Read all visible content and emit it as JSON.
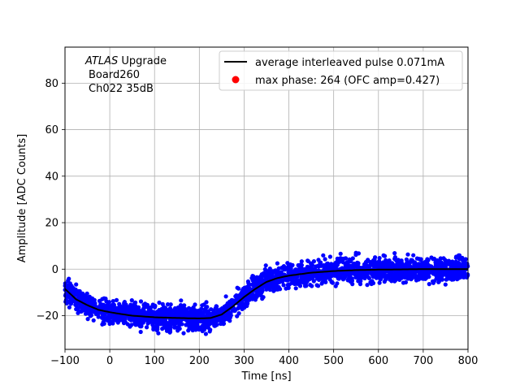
{
  "chart_data": {
    "type": "scatter",
    "xlabel": "Time [ns]",
    "ylabel": "Amplitude [ADC Counts]",
    "xlim": [
      -100,
      800
    ],
    "ylim": [
      -34.5,
      95.5
    ],
    "xticks": [
      "−100",
      "0",
      "100",
      "200",
      "300",
      "400",
      "500",
      "600",
      "700",
      "800"
    ],
    "xtick_values": [
      -100,
      0,
      100,
      200,
      300,
      400,
      500,
      600,
      700,
      800
    ],
    "yticks": [
      "−20",
      "0",
      "20",
      "40",
      "60",
      "80"
    ],
    "ytick_values": [
      -20,
      0,
      20,
      40,
      60,
      80
    ],
    "grid": true,
    "legend_position": "top-right",
    "annotation": {
      "italic": "ATLAS",
      "rest": " Upgrade",
      "line2": "Board260",
      "line3": "Ch022 35dB"
    },
    "series": [
      {
        "name": "average interleaved pulse 0.071mA",
        "type": "line",
        "color": "#000000",
        "x": [
          -100,
          -75,
          -50,
          -25,
          0,
          25,
          50,
          100,
          150,
          200,
          225,
          250,
          275,
          300,
          325,
          350,
          375,
          400,
          450,
          500,
          550,
          600,
          700,
          800
        ],
        "y": [
          -8.5,
          -13,
          -15.5,
          -17.5,
          -18.5,
          -19.3,
          -20,
          -20.7,
          -21,
          -21.2,
          -21,
          -19.5,
          -16,
          -12,
          -8.5,
          -5.5,
          -3.8,
          -2.8,
          -1.5,
          -0.8,
          -0.4,
          -0.2,
          0,
          0
        ]
      },
      {
        "name": "max phase: 264 (OFC amp=0.427)",
        "type": "marker",
        "color": "#ff0000",
        "x": [],
        "y": []
      }
    ],
    "scatter_cloud": {
      "color": "#0000ff",
      "spread": 3.5,
      "x_range": [
        -100,
        800
      ]
    }
  }
}
